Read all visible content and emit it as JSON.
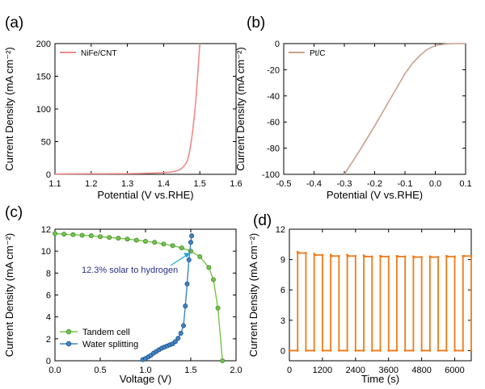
{
  "colors": {
    "nife": "#f08a8a",
    "ptc": "#c9a08c",
    "tandem": "#77c24a",
    "tandem_edge": "#3f8f2a",
    "water": "#3e86c6",
    "water_edge": "#1f4f86",
    "annotation": "#2a2f8a",
    "arrow": "#19a7d8",
    "orange": "#f07a1a"
  },
  "chart_data": [
    {
      "id": "a",
      "panel_label": "(a)",
      "type": "line",
      "xlabel": "Potential (V vs.RHE)",
      "ylabel": "Current Density (mA cm⁻²)",
      "xlim": [
        1.1,
        1.6
      ],
      "ylim": [
        0,
        200
      ],
      "xticks": [
        1.1,
        1.2,
        1.3,
        1.4,
        1.5,
        1.6
      ],
      "xtick_labels": [
        "1.1",
        "1.2",
        "1.3",
        "1.4",
        "1.5",
        "1.6"
      ],
      "yticks": [
        0,
        50,
        100,
        150,
        200
      ],
      "ytick_labels": [
        "0",
        "50",
        "100",
        "150",
        "200"
      ],
      "legend": [
        "NiFe/CNT"
      ],
      "series": [
        {
          "name": "NiFe/CNT",
          "color_key": "nife",
          "x": [
            1.1,
            1.2,
            1.3,
            1.35,
            1.4,
            1.42,
            1.44,
            1.45,
            1.46,
            1.465,
            1.47,
            1.475,
            1.48,
            1.485,
            1.49,
            1.495,
            1.5
          ],
          "y": [
            0.5,
            0.8,
            1.0,
            1.5,
            2.5,
            3.5,
            6,
            9,
            15,
            20,
            30,
            45,
            65,
            90,
            120,
            160,
            200
          ]
        }
      ]
    },
    {
      "id": "b",
      "panel_label": "(b)",
      "type": "line",
      "xlabel": "Potential (V vs.RHE)",
      "ylabel": "Current Density (mA cm⁻²)",
      "xlim": [
        -0.5,
        0.1
      ],
      "ylim": [
        -100,
        0
      ],
      "xticks": [
        -0.5,
        -0.4,
        -0.3,
        -0.2,
        -0.1,
        0.0,
        0.1
      ],
      "xtick_labels": [
        "-0.5",
        "-0.4",
        "-0.3",
        "-0.2",
        "-0.1",
        "0.0",
        "0.1"
      ],
      "yticks": [
        -100,
        -80,
        -60,
        -40,
        -20,
        0
      ],
      "ytick_labels": [
        "-100",
        "-80",
        "-60",
        "-40",
        "-20",
        "0"
      ],
      "legend": [
        "Pt/C"
      ],
      "series": [
        {
          "name": "Pt/C",
          "color_key": "ptc",
          "x": [
            -0.3,
            -0.25,
            -0.2,
            -0.15,
            -0.1,
            -0.075,
            -0.05,
            -0.03,
            -0.01,
            0.01,
            0.03,
            0.05,
            0.07,
            0.1
          ],
          "y": [
            -100,
            -82,
            -63,
            -43,
            -23,
            -15,
            -9,
            -5,
            -2.5,
            -1,
            -0.4,
            -0.1,
            0,
            0
          ]
        }
      ]
    },
    {
      "id": "c",
      "panel_label": "(c)",
      "type": "line",
      "xlabel": "Voltage (V)",
      "ylabel": "Current Density (mA cm⁻²)",
      "xlim": [
        0.0,
        2.0
      ],
      "ylim": [
        0,
        12
      ],
      "xticks": [
        0.0,
        0.5,
        1.0,
        1.5,
        2.0
      ],
      "xtick_labels": [
        "0.0",
        "0.5",
        "1.0",
        "1.5",
        "2.0"
      ],
      "yticks": [
        0,
        2,
        4,
        6,
        8,
        10,
        12
      ],
      "ytick_labels": [
        "0",
        "2",
        "4",
        "6",
        "8",
        "10",
        "12"
      ],
      "annotation": "12.3% solar to hydrogen",
      "annotation_point": [
        1.5,
        9.9
      ],
      "legend": [
        "Tandem cell",
        "Water splitting"
      ],
      "series": [
        {
          "name": "Tandem cell",
          "color_key": "tandem",
          "edge_key": "tandem_edge",
          "x": [
            0.0,
            0.1,
            0.2,
            0.3,
            0.4,
            0.5,
            0.6,
            0.7,
            0.8,
            0.9,
            1.0,
            1.1,
            1.2,
            1.3,
            1.4,
            1.5,
            1.6,
            1.7,
            1.75,
            1.8,
            1.85
          ],
          "y": [
            11.6,
            11.55,
            11.5,
            11.45,
            11.4,
            11.32,
            11.25,
            11.18,
            11.1,
            11.0,
            10.9,
            10.8,
            10.65,
            10.5,
            10.3,
            10.0,
            9.5,
            8.5,
            7.4,
            4.8,
            0.0
          ]
        },
        {
          "name": "Water splitting",
          "color_key": "water",
          "edge_key": "water_edge",
          "x": [
            0.97,
            1.0,
            1.03,
            1.06,
            1.09,
            1.12,
            1.15,
            1.18,
            1.21,
            1.24,
            1.27,
            1.3,
            1.33,
            1.36,
            1.39,
            1.42,
            1.44,
            1.46,
            1.48,
            1.5,
            1.51
          ],
          "y": [
            0.1,
            0.2,
            0.35,
            0.5,
            0.7,
            0.85,
            1.0,
            1.15,
            1.25,
            1.35,
            1.45,
            1.55,
            1.75,
            2.05,
            2.5,
            3.2,
            5.0,
            7.0,
            9.2,
            10.8,
            11.4
          ]
        }
      ]
    },
    {
      "id": "d",
      "panel_label": "(d)",
      "type": "line",
      "xlabel": "Time (s)",
      "ylabel": "Current Density (mA cm⁻²)",
      "xlim": [
        0,
        6600
      ],
      "ylim": [
        -1,
        12
      ],
      "xticks": [
        0,
        1200,
        2400,
        3600,
        4800,
        6000
      ],
      "xtick_labels": [
        "0",
        "1200",
        "2400",
        "3600",
        "4800",
        "6000"
      ],
      "yticks": [
        0,
        3,
        6,
        9,
        12
      ],
      "ytick_labels": [
        "0",
        "3",
        "6",
        "9",
        "12"
      ],
      "series": [
        {
          "name": "on/off cycling",
          "color_key": "orange",
          "cycle_period_s": 600,
          "on_duration_s": 300,
          "first_on_s": 300,
          "off_value": 0,
          "on_peak_values": [
            9.75,
            9.55,
            9.45,
            9.45,
            9.4,
            9.35,
            9.35,
            9.3,
            9.3,
            9.35,
            9.35
          ],
          "on_settle_values": [
            9.65,
            9.45,
            9.35,
            9.35,
            9.3,
            9.3,
            9.3,
            9.25,
            9.25,
            9.3,
            9.35
          ]
        }
      ]
    }
  ]
}
